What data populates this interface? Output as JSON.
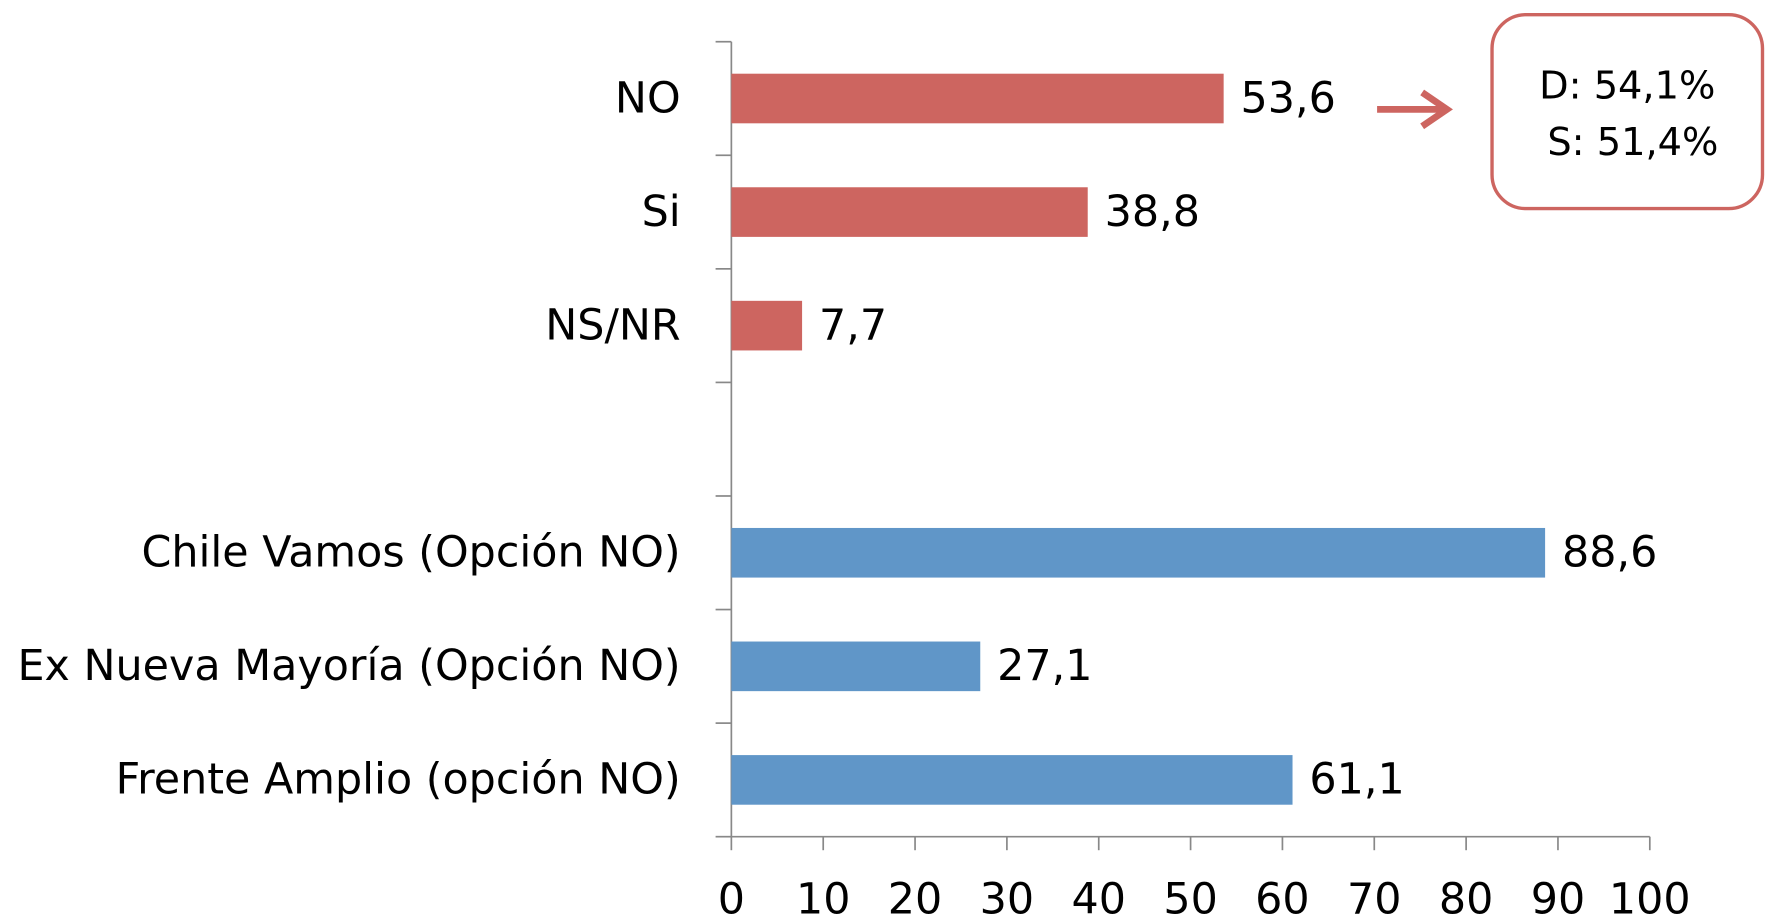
{
  "chart_data": {
    "type": "bar",
    "orientation": "horizontal",
    "categories": [
      "NO",
      "Si",
      "NS/NR",
      null,
      "Chile Vamos (Opción NO)",
      "Ex Nueva Mayoría (Opción NO)",
      "Frente Amplio (opción NO)"
    ],
    "values": [
      53.6,
      38.8,
      7.7,
      null,
      88.6,
      27.1,
      61.1
    ],
    "value_labels": [
      "53,6",
      "38,8",
      "7,7",
      null,
      "88,6",
      "27,1",
      "61,1"
    ],
    "colors": [
      "#cd6560",
      "#cd6560",
      "#cd6560",
      null,
      "#6096c8",
      "#6096c8",
      "#6096c8"
    ],
    "xlim": [
      0,
      100
    ],
    "xticks": [
      0,
      10,
      20,
      30,
      40,
      50,
      60,
      70,
      80,
      90,
      100
    ],
    "annotations": [
      "D: 54,1%",
      "S: 51,4%"
    ]
  }
}
